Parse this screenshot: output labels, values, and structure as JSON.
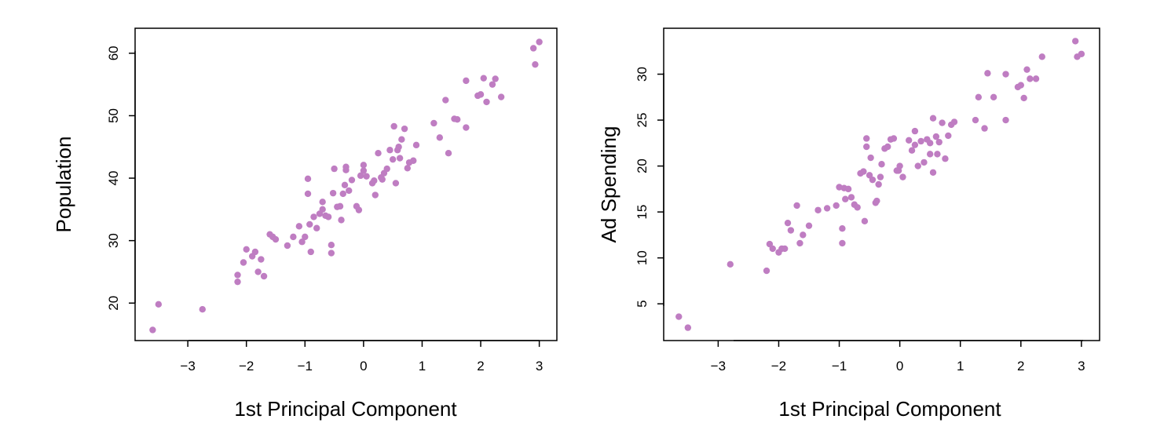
{
  "chart_data": [
    {
      "type": "scatter",
      "title": "",
      "xlabel": "1st Principal Component",
      "ylabel": "Population",
      "xlim": [
        -3.9,
        3.3
      ],
      "ylim": [
        14,
        64
      ],
      "xticks": [
        -3,
        -2,
        -1,
        0,
        1,
        2,
        3
      ],
      "yticks": [
        20,
        30,
        40,
        50,
        60
      ],
      "xtick_labels": [
        "−3",
        "−2",
        "−1",
        "0",
        "1",
        "2",
        "3"
      ],
      "ytick_labels": [
        "20",
        "30",
        "40",
        "50",
        "60"
      ],
      "grid": false,
      "legend": "none",
      "marker_color": "#bf7dc2",
      "series": [
        {
          "x": [
            -3.6,
            -3.5,
            -2.75,
            -2.15,
            -2.15,
            -2.05,
            -2.0,
            -1.9,
            -1.85,
            -1.8,
            -1.75,
            -1.7,
            -1.6,
            -1.55,
            -1.5,
            -1.3,
            -1.2,
            -1.1,
            -1.05,
            -1.0,
            -0.95,
            -0.95,
            -0.92,
            -0.9,
            -0.85,
            -0.8,
            -0.75,
            -0.7,
            -0.7,
            -0.65,
            -0.6,
            -0.55,
            -0.55,
            -0.52,
            -0.5,
            -0.45,
            -0.4,
            -0.38,
            -0.35,
            -0.32,
            -0.3,
            -0.3,
            -0.25,
            -0.2,
            -0.12,
            -0.08,
            -0.05,
            0.0,
            0.0,
            0.05,
            0.15,
            0.18,
            0.2,
            0.25,
            0.3,
            0.32,
            0.35,
            0.4,
            0.45,
            0.5,
            0.52,
            0.55,
            0.58,
            0.6,
            0.62,
            0.65,
            0.7,
            0.75,
            0.78,
            0.85,
            0.9,
            1.2,
            1.3,
            1.4,
            1.45,
            1.55,
            1.6,
            1.75,
            1.75,
            1.95,
            2.0,
            2.05,
            2.1,
            2.2,
            2.25,
            2.35,
            2.9,
            2.93,
            3.0
          ],
          "y": [
            15.7,
            19.8,
            19.0,
            23.4,
            24.5,
            26.5,
            28.6,
            27.5,
            28.2,
            25.0,
            27.0,
            24.3,
            31.0,
            30.6,
            30.2,
            29.2,
            30.6,
            32.3,
            29.8,
            30.6,
            37.5,
            39.9,
            32.6,
            28.2,
            33.8,
            32.0,
            34.3,
            35.0,
            36.2,
            34.0,
            33.8,
            29.3,
            28.0,
            37.6,
            41.5,
            35.4,
            35.5,
            33.3,
            37.5,
            38.9,
            41.3,
            41.8,
            38.0,
            39.7,
            35.5,
            34.9,
            40.4,
            41.2,
            42.1,
            40.3,
            39.2,
            39.6,
            37.3,
            44.0,
            40.1,
            39.8,
            40.8,
            41.5,
            44.5,
            43.0,
            48.3,
            39.2,
            44.5,
            45.0,
            43.2,
            46.2,
            47.9,
            41.6,
            42.5,
            42.8,
            45.3,
            48.8,
            46.5,
            52.5,
            44.0,
            49.5,
            49.4,
            55.6,
            48.1,
            53.2,
            53.4,
            56.0,
            52.2,
            55.0,
            55.9,
            53.0,
            60.8,
            58.2,
            61.8
          ]
        }
      ]
    },
    {
      "type": "scatter",
      "title": "",
      "xlabel": "1st Principal Component",
      "ylabel": "Ad Spending",
      "xlim": [
        -3.9,
        3.3
      ],
      "ylim": [
        1,
        35
      ],
      "xticks": [
        -3,
        -2,
        -1,
        0,
        1,
        2,
        3
      ],
      "yticks": [
        5,
        10,
        15,
        20,
        25,
        30
      ],
      "xtick_labels": [
        "−3",
        "−2",
        "−1",
        "0",
        "1",
        "2",
        "3"
      ],
      "ytick_labels": [
        "5",
        "10",
        "15",
        "20",
        "25",
        "30"
      ],
      "grid": false,
      "legend": "none",
      "marker_color": "#bf7dc2",
      "series": [
        {
          "x": [
            -3.65,
            -3.5,
            -2.8,
            -2.2,
            -2.15,
            -2.1,
            -2.0,
            -1.95,
            -1.9,
            -1.85,
            -1.8,
            -1.7,
            -1.65,
            -1.6,
            -1.5,
            -1.35,
            -1.2,
            -1.05,
            -1.0,
            -0.95,
            -0.95,
            -0.92,
            -0.9,
            -0.85,
            -0.8,
            -0.75,
            -0.7,
            -0.65,
            -0.6,
            -0.58,
            -0.55,
            -0.55,
            -0.5,
            -0.48,
            -0.45,
            -0.4,
            -0.38,
            -0.35,
            -0.32,
            -0.3,
            -0.25,
            -0.2,
            -0.15,
            -0.1,
            -0.05,
            -0.02,
            0.0,
            0.05,
            0.15,
            0.2,
            0.25,
            0.25,
            0.3,
            0.35,
            0.4,
            0.45,
            0.5,
            0.5,
            0.55,
            0.55,
            0.6,
            0.62,
            0.65,
            0.7,
            0.75,
            0.8,
            0.85,
            0.9,
            1.25,
            1.3,
            1.4,
            1.45,
            1.55,
            1.75,
            1.75,
            1.95,
            2.0,
            2.05,
            2.1,
            2.15,
            2.25,
            2.35,
            2.9,
            2.93,
            3.0
          ],
          "y": [
            3.6,
            2.4,
            9.3,
            8.6,
            11.5,
            11.0,
            10.6,
            11.0,
            11.0,
            13.8,
            13.0,
            15.7,
            11.6,
            12.5,
            13.5,
            15.2,
            15.4,
            15.7,
            17.7,
            11.6,
            13.2,
            17.6,
            16.4,
            17.5,
            16.6,
            15.8,
            15.5,
            19.2,
            19.4,
            14.0,
            23.0,
            22.1,
            19.0,
            20.9,
            18.5,
            16.0,
            16.2,
            18.0,
            18.8,
            20.2,
            21.9,
            22.1,
            22.9,
            23.0,
            19.5,
            19.5,
            20.0,
            18.8,
            22.8,
            21.7,
            23.8,
            22.3,
            20.0,
            22.7,
            20.4,
            22.9,
            22.5,
            21.3,
            25.2,
            19.3,
            23.2,
            21.3,
            22.6,
            24.7,
            20.8,
            23.3,
            24.5,
            24.8,
            25.0,
            27.5,
            24.1,
            30.1,
            27.5,
            30.0,
            25.0,
            28.6,
            28.8,
            27.4,
            30.5,
            29.5,
            29.5,
            31.9,
            33.6,
            31.9,
            32.2
          ]
        }
      ]
    }
  ]
}
